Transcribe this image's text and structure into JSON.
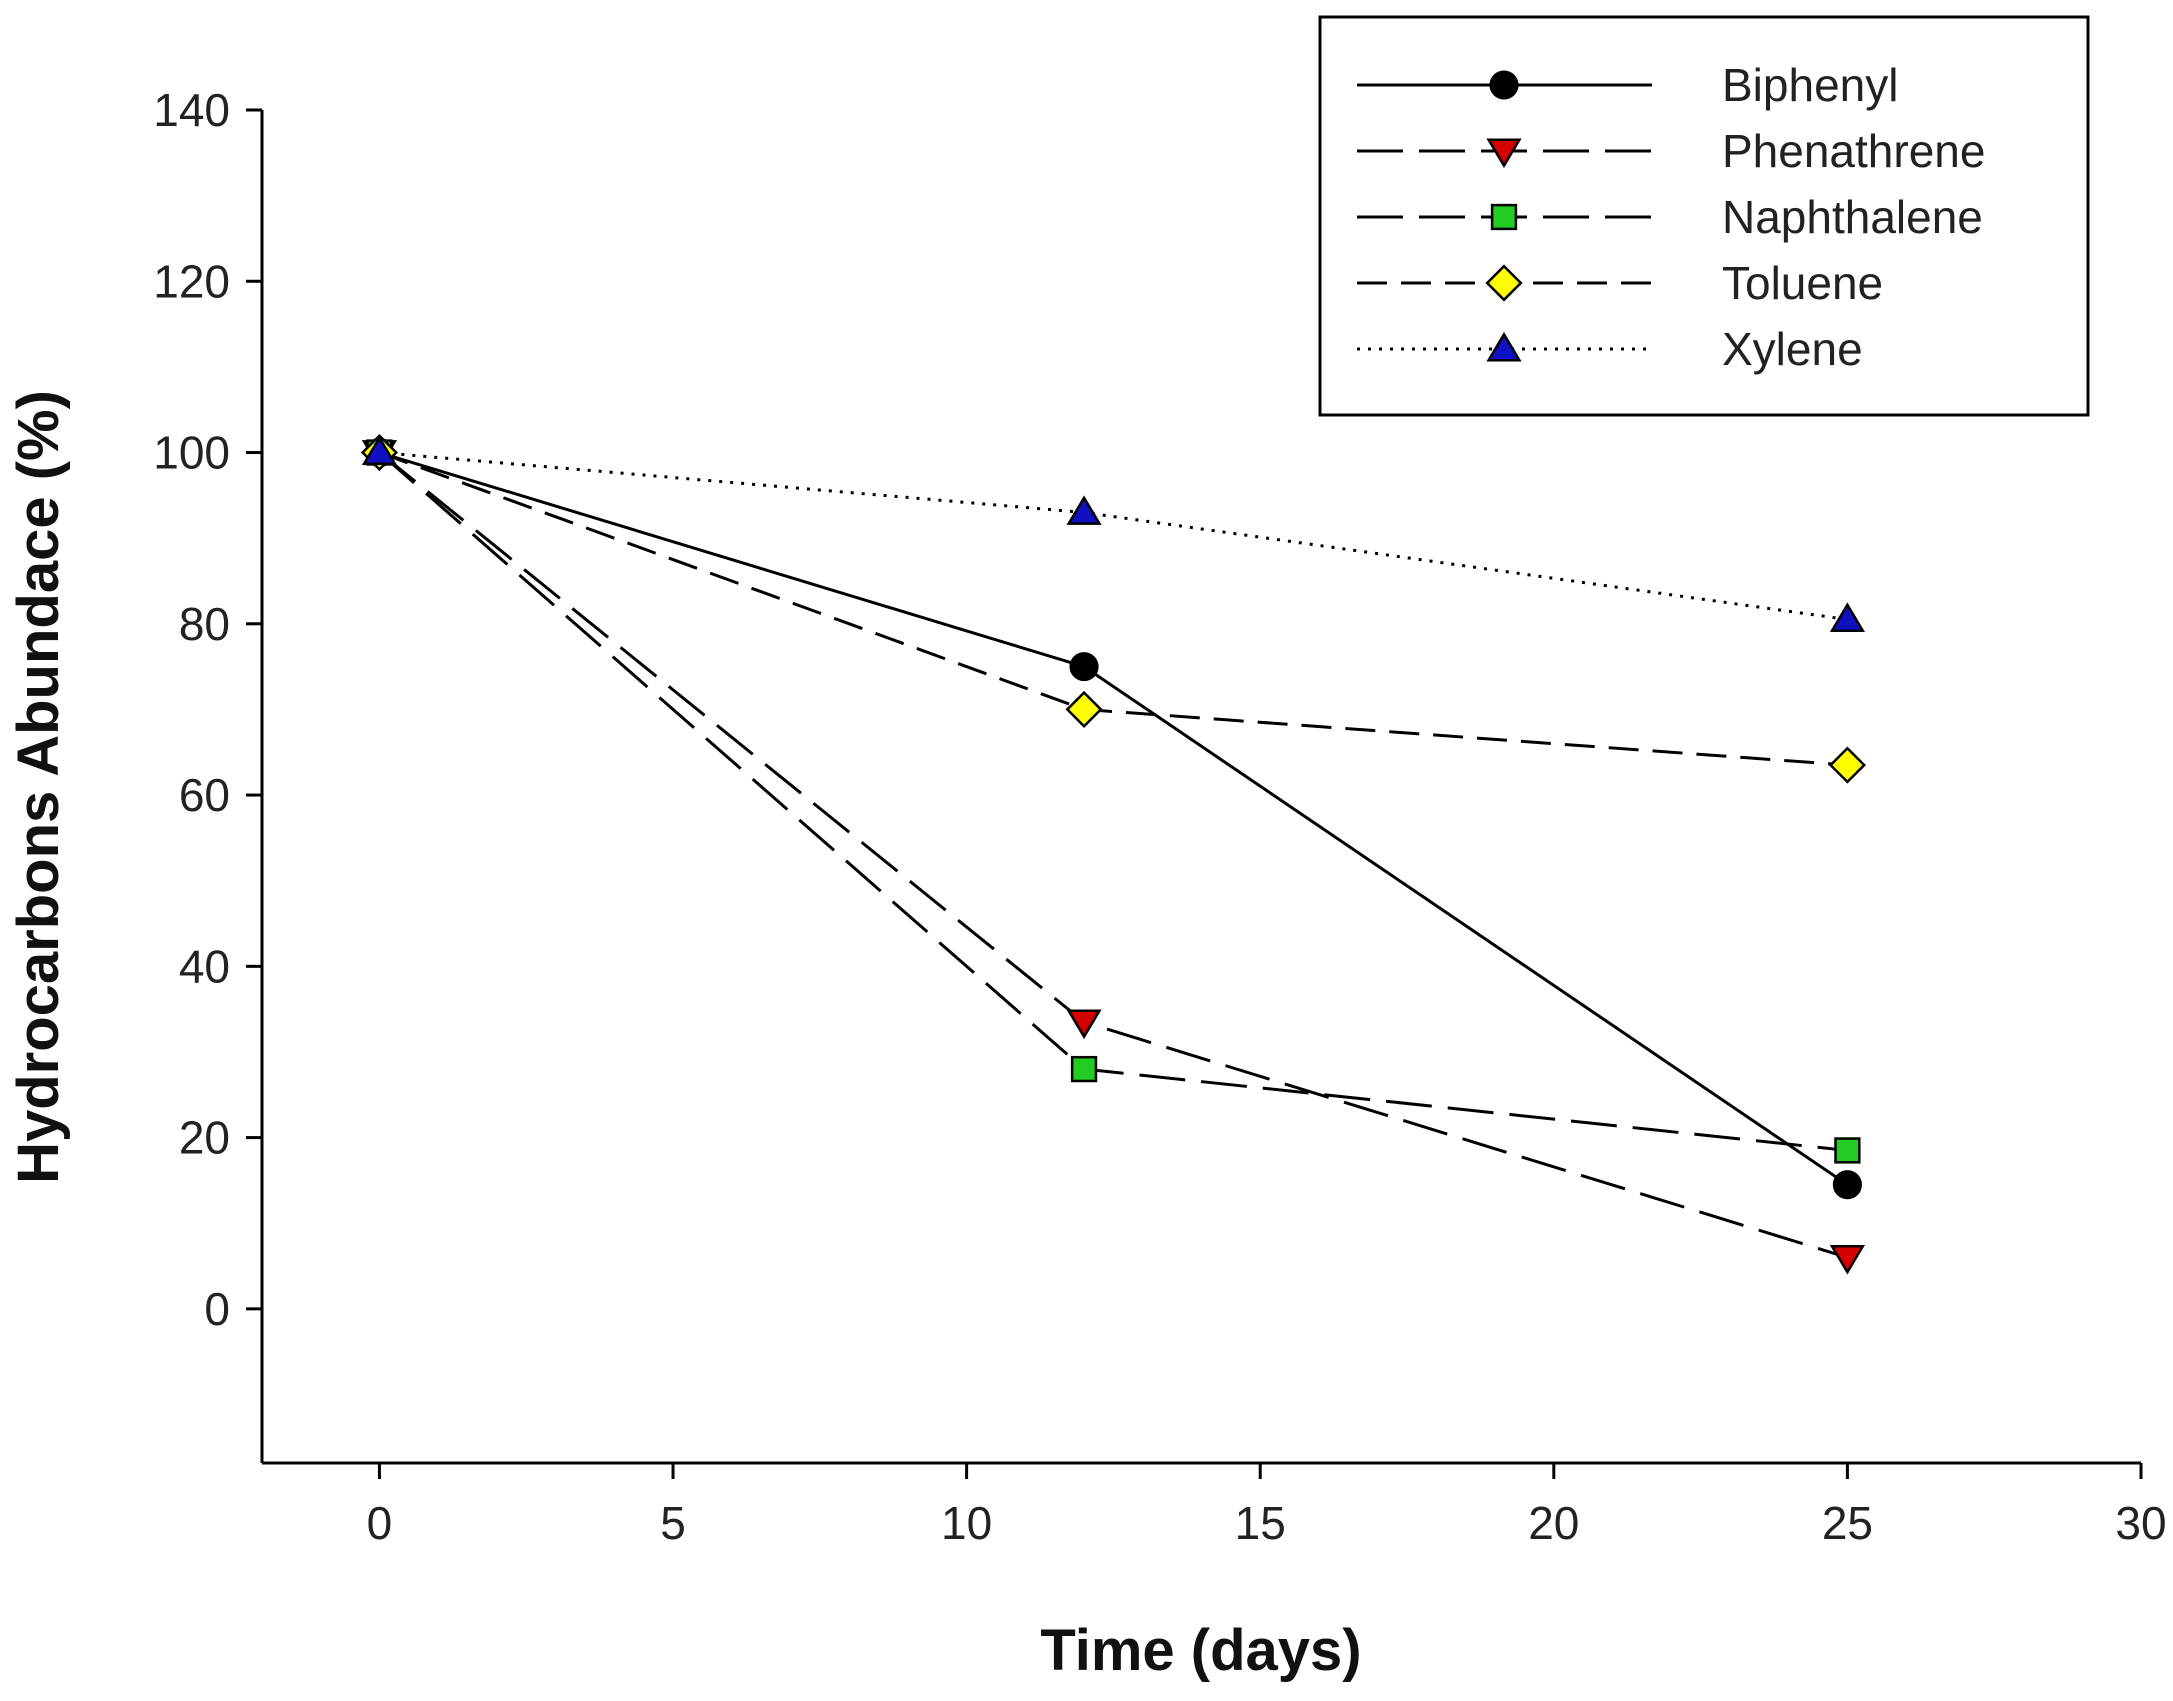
{
  "chart_data": {
    "type": "line",
    "title": "",
    "xlabel": "Time (days)",
    "ylabel": "Hydrocarbons Abundace (%)",
    "xlim": [
      -2,
      30
    ],
    "ylim": [
      -18,
      140
    ],
    "xticks": [
      0,
      5,
      10,
      15,
      20,
      25,
      30
    ],
    "yticks": [
      0,
      20,
      40,
      60,
      80,
      100,
      120,
      140
    ],
    "x": [
      0,
      12,
      25
    ],
    "legend_position": "top-right",
    "series": [
      {
        "name": "Biphenyl",
        "values": [
          100,
          75,
          14.5
        ],
        "marker": "circle",
        "color": "#000000",
        "dash": "solid"
      },
      {
        "name": "Phenathrene",
        "values": [
          100,
          33.5,
          6
        ],
        "marker": "triangle-down",
        "color": "#d40000",
        "dash": "long"
      },
      {
        "name": "Naphthalene",
        "values": [
          100,
          28,
          18.5
        ],
        "marker": "square",
        "color": "#22cc22",
        "dash": "long"
      },
      {
        "name": "Toluene",
        "values": [
          100,
          70,
          63.5
        ],
        "marker": "diamond",
        "color": "#ffff00",
        "dash": "medium"
      },
      {
        "name": "Xylene",
        "values": [
          100,
          93,
          80.5
        ],
        "marker": "triangle-up",
        "color": "#1010c0",
        "dash": "dotted"
      }
    ]
  }
}
